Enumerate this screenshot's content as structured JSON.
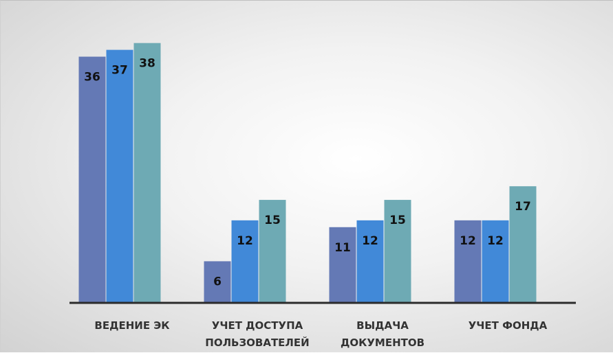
{
  "chart_data": {
    "type": "bar",
    "categories": [
      [
        "ВЕДЕНИЕ ЭК"
      ],
      [
        "УЧЕТ ДОСТУПА",
        "ПОЛЬЗОВАТЕЛЕЙ"
      ],
      [
        "ВЫДАЧА",
        "ДОКУМЕНТОВ"
      ],
      [
        "УЧЕТ ФОНДА"
      ]
    ],
    "series": [
      {
        "color": "#6479B5",
        "values": [
          36,
          6,
          11,
          12
        ]
      },
      {
        "color": "#4189D8",
        "values": [
          37,
          12,
          12,
          12
        ]
      },
      {
        "color": "#6EAAB4",
        "values": [
          38,
          15,
          15,
          17
        ]
      }
    ],
    "ylim": [
      0,
      40
    ],
    "grid": false,
    "legend": "none",
    "xlabel": "",
    "ylabel": "",
    "title": ""
  }
}
